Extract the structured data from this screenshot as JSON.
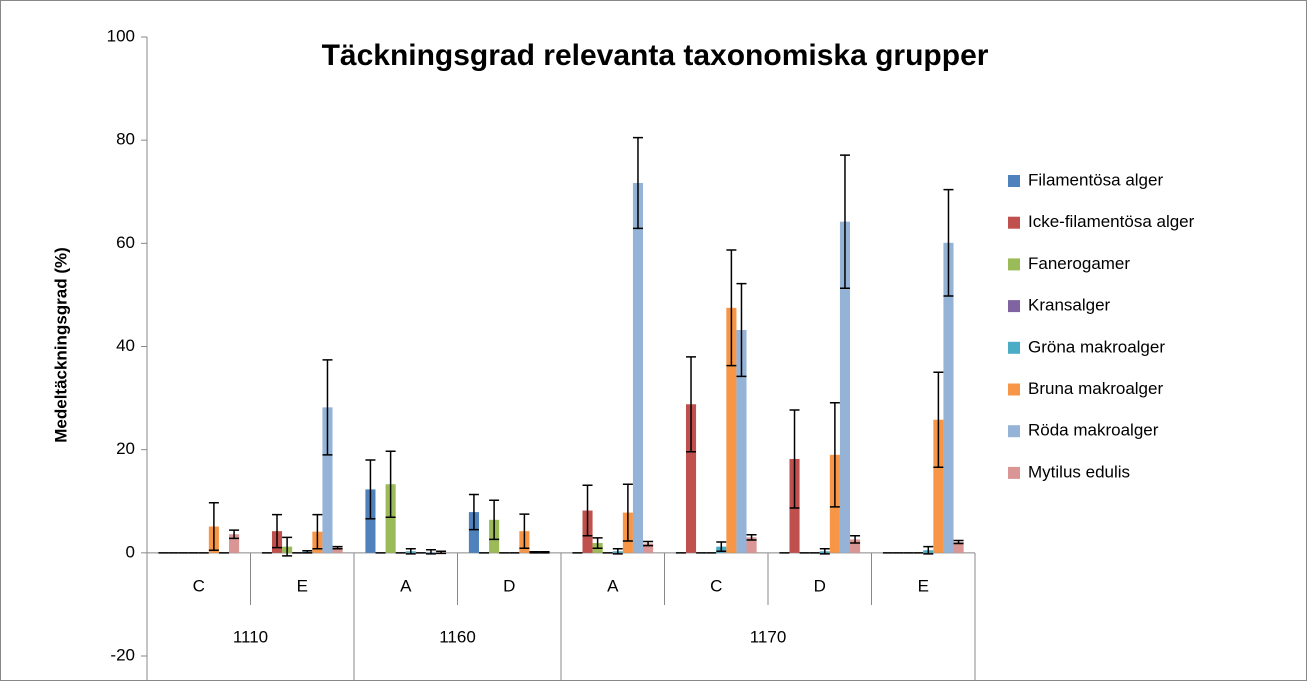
{
  "chart_data": {
    "type": "bar",
    "title": "Täckningsgrad relevanta taxonomiska grupper",
    "y_label": "Medeltäckningsgrad (%)",
    "groups": [
      {
        "name": "1110",
        "categories": [
          "C",
          "E"
        ]
      },
      {
        "name": "1160",
        "categories": [
          "A",
          "D"
        ]
      },
      {
        "name": "1170",
        "categories": [
          "A",
          "C",
          "D",
          "E"
        ]
      }
    ],
    "ylim": [
      -20,
      100
    ],
    "yticks": [
      -20,
      0,
      20,
      40,
      60,
      80,
      100
    ],
    "grid": false,
    "legend": "right",
    "series": [
      {
        "name": "Filamentösa alger",
        "color": "#4f81bd",
        "values": [
          0,
          0,
          12.3,
          7.9,
          0,
          0,
          0,
          0
        ],
        "errors": [
          0,
          0,
          5.7,
          3.4,
          0,
          0,
          0,
          0
        ]
      },
      {
        "name": "Icke-filamentösa alger",
        "color": "#c0504d",
        "values": [
          0,
          4.2,
          0,
          0,
          8.2,
          28.8,
          18.2,
          0
        ],
        "errors": [
          0,
          3.2,
          0,
          0,
          4.9,
          9.2,
          9.5,
          0
        ]
      },
      {
        "name": "Fanerogamer",
        "color": "#9bbb59",
        "values": [
          0,
          1.2,
          13.3,
          6.4,
          1.9,
          0,
          0,
          0
        ],
        "errors": [
          0,
          1.8,
          6.4,
          3.8,
          1,
          0,
          0,
          0
        ]
      },
      {
        "name": "Kransalger",
        "color": "#8064a2",
        "values": [
          0,
          0,
          0,
          0,
          0,
          0,
          0,
          0
        ],
        "errors": [
          0,
          0,
          0,
          0,
          0,
          0,
          0,
          0
        ]
      },
      {
        "name": "Gröna makroalger",
        "color": "#4bacc6",
        "values": [
          0,
          0.2,
          0.3,
          0,
          0.3,
          1.2,
          0.3,
          0.5
        ],
        "errors": [
          0,
          0.2,
          0.5,
          0,
          0.5,
          0.9,
          0.5,
          0.7
        ]
      },
      {
        "name": "Bruna makroalger",
        "color": "#f79646",
        "values": [
          5.1,
          4.1,
          0,
          4.2,
          7.8,
          47.5,
          19,
          25.8
        ],
        "errors": [
          4.6,
          3.3,
          0,
          3.3,
          5.5,
          11.2,
          10.1,
          9.2
        ]
      },
      {
        "name": "Röda makroalger",
        "color": "#95b3d7",
        "values": [
          0,
          28.2,
          0.2,
          0.1,
          71.7,
          43.2,
          64.2,
          60.1
        ],
        "errors": [
          0,
          9.2,
          0.4,
          0.1,
          8.8,
          9,
          12.9,
          10.3
        ]
      },
      {
        "name": "Mytilus edulis",
        "color": "#d99694",
        "values": [
          3.6,
          1,
          0.1,
          0.1,
          1.8,
          3,
          2.6,
          2.1
        ],
        "errors": [
          0.8,
          0.2,
          0.2,
          0.1,
          0.4,
          0.5,
          0.7,
          0.3
        ]
      }
    ]
  }
}
